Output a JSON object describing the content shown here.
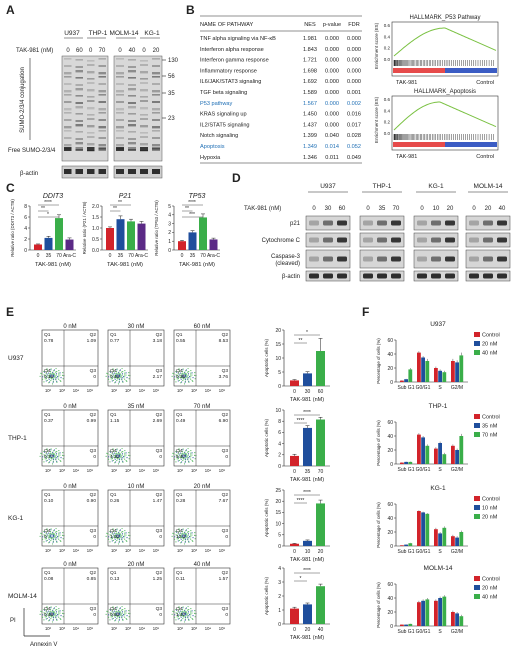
{
  "panel_letters": [
    "A",
    "B",
    "C",
    "D",
    "E",
    "F"
  ],
  "colors": {
    "control": "#d2232a",
    "mid": "#1f4e9c",
    "high": "#3aae49",
    "arac": "#5b2a86",
    "gsea_curve": "#7ac142",
    "highlight": "#1f6fb5"
  },
  "panel_a": {
    "cell_lines_left": [
      "U937",
      "THP-1"
    ],
    "cell_lines_right": [
      "MOLM-14",
      "KG-1"
    ],
    "dose_label": "TAK-981 (nM)",
    "doses_left": [
      "0",
      "60",
      "0",
      "70"
    ],
    "doses_right": [
      "0",
      "40",
      "0",
      "20"
    ],
    "conj_label": "SUMO-2/3/4 conjugation",
    "free_label": "Free SUMO-2/3/4",
    "actin_label": "β-actin",
    "mw_markers": [
      "130",
      "56",
      "35",
      "23"
    ]
  },
  "panel_b": {
    "headers": [
      "NAME OF PATHWAY",
      "NES",
      "p-value",
      "FDR"
    ],
    "rows": [
      [
        "TNF alpha signaling via NF-κB",
        "1.981",
        "0.000",
        "0.000"
      ],
      [
        "Interferon alpha response",
        "1.843",
        "0.000",
        "0.000"
      ],
      [
        "Interferon gamma response",
        "1.721",
        "0.000",
        "0.000"
      ],
      [
        "Inflammatory response",
        "1.698",
        "0.000",
        "0.000"
      ],
      [
        "IL6/JAK/STAT3 signaling",
        "1.692",
        "0.000",
        "0.000"
      ],
      [
        "TGF beta signaling",
        "1.589",
        "0.000",
        "0.001"
      ],
      [
        "P53 pathway",
        "1.567",
        "0.000",
        "0.002"
      ],
      [
        "KRAS signaling up",
        "1.450",
        "0.000",
        "0.016"
      ],
      [
        "IL2/STAT5 signaling",
        "1.437",
        "0.000",
        "0.017"
      ],
      [
        "Notch signaling",
        "1.399",
        "0.040",
        "0.028"
      ],
      [
        "Apoptosis",
        "1.349",
        "0.014",
        "0.052"
      ],
      [
        "Hypoxia",
        "1.346",
        "0.011",
        "0.049"
      ]
    ],
    "highlight_rows": [
      6,
      10
    ],
    "gsea": [
      {
        "title": "HALLMARK_P53 Pathway",
        "ylabel": "Enrichment score (ES)",
        "left": "TAK-981",
        "right": "Control",
        "y_ticks": [
          "0.6",
          "0.4",
          "0.2",
          "0.0"
        ]
      },
      {
        "title": "HALLMARK_Apoptosis",
        "ylabel": "Enrichment score (ES)",
        "left": "TAK-981",
        "right": "Control",
        "y_ticks": [
          "0.6",
          "0.4",
          "0.2",
          "0.0"
        ]
      }
    ]
  },
  "panel_c": {
    "charts": [
      {
        "gene": "DDIT3",
        "ylabel": "Relative ratio (DDIT3 / ACTB)",
        "ylim": [
          0,
          8
        ],
        "y_ticks": [
          "0",
          "2",
          "4",
          "6",
          "8"
        ],
        "values": [
          1.0,
          2.2,
          5.8,
          1.9
        ],
        "errors": [
          0.1,
          0.3,
          0.6,
          0.3
        ],
        "sig": [
          "****",
          "**",
          "*"
        ]
      },
      {
        "gene": "P21",
        "ylabel": "Relative ratio (P21 / ACTB)",
        "ylim": [
          0,
          2.0
        ],
        "y_ticks": [
          "0.0",
          "0.5",
          "1.0",
          "1.5",
          "2.0"
        ],
        "values": [
          1.0,
          1.4,
          1.3,
          1.2
        ],
        "errors": [
          0.05,
          0.15,
          0.1,
          0.1
        ],
        "sig": [
          "**",
          "**"
        ]
      },
      {
        "gene": "TP53",
        "ylabel": "Relative ratio (TP53 / ACTB)",
        "ylim": [
          0,
          5
        ],
        "y_ticks": [
          "0",
          "1",
          "2",
          "3",
          "4",
          "5"
        ],
        "values": [
          1.0,
          2.0,
          3.7,
          1.2
        ],
        "errors": [
          0.1,
          0.2,
          0.4,
          0.15
        ],
        "sig": [
          "****",
          "**",
          "***"
        ]
      }
    ],
    "categories": [
      "0",
      "35",
      "70",
      "Ara-C"
    ],
    "xlabel": "TAK-981 (nM)"
  },
  "panel_d": {
    "dose_label": "TAK-981 (nM)",
    "groups": [
      {
        "name": "U937",
        "doses": [
          "0",
          "30",
          "60"
        ]
      },
      {
        "name": "THP-1",
        "doses": [
          "0",
          "35",
          "70"
        ]
      },
      {
        "name": "KG-1",
        "doses": [
          "0",
          "10",
          "20"
        ]
      },
      {
        "name": "MOLM-14",
        "doses": [
          "0",
          "20",
          "40"
        ]
      }
    ],
    "rows": [
      "p21",
      "Cytochrome C",
      "Caspase-3 (cleaved)",
      "β-actin"
    ]
  },
  "panel_e": {
    "rows": [
      {
        "cell": "U937",
        "doses": [
          "0 nM",
          "30 nM",
          "60 nM"
        ],
        "q": [
          [
            "0.78",
            "1.09",
            "0.16",
            "0"
          ],
          [
            "0.77",
            "3.18",
            "0.49",
            "2.17"
          ],
          [
            "0.55",
            "8.53",
            "0.35",
            "3.76"
          ]
        ],
        "bar": {
          "cats": [
            "0",
            "30",
            "60"
          ],
          "values": [
            2,
            4.5,
            12.5
          ],
          "errors": [
            0.3,
            0.6,
            4.5
          ],
          "ylim": [
            0,
            20
          ],
          "y_ticks": [
            "0",
            "5",
            "10",
            "15",
            "20"
          ],
          "sig": [
            "*",
            "**"
          ]
        }
      },
      {
        "cell": "THP-1",
        "doses": [
          "0 nM",
          "35 nM",
          "70 nM"
        ],
        "q": [
          [
            "0.37",
            "0.99",
            "0.77",
            "0"
          ],
          [
            "1.15",
            "2.69",
            "4.32",
            "0"
          ],
          [
            "0.49",
            "6.90",
            "5.47",
            "0"
          ]
        ],
        "bar": {
          "cats": [
            "0",
            "35",
            "70"
          ],
          "values": [
            1.8,
            6.8,
            8.3
          ],
          "errors": [
            0.3,
            0.4,
            0.4
          ],
          "ylim": [
            0,
            10
          ],
          "y_ticks": [
            "0",
            "2",
            "4",
            "6",
            "8",
            "10"
          ],
          "sig": [
            "****",
            "****"
          ]
        }
      },
      {
        "cell": "KG-1",
        "doses": [
          "0 nM",
          "10 nM",
          "20 nM"
        ],
        "q": [
          [
            "0.10",
            "0.90",
            "0",
            "0"
          ],
          [
            "0.26",
            "1.47",
            "1.02",
            "0"
          ],
          [
            "0.28",
            "7.67",
            "12.3",
            "0"
          ]
        ],
        "bar": {
          "cats": [
            "0",
            "10",
            "20"
          ],
          "values": [
            1.0,
            2.3,
            19
          ],
          "errors": [
            0.2,
            0.4,
            1.5
          ],
          "ylim": [
            0,
            25
          ],
          "y_ticks": [
            "0",
            "5",
            "10",
            "15",
            "20",
            "25"
          ],
          "sig": [
            "****",
            "****"
          ]
        }
      },
      {
        "cell": "MOLM-14",
        "doses": [
          "0 nM",
          "20 nM",
          "40 nM"
        ],
        "q": [
          [
            "0.08",
            "0.85",
            "0.48",
            "0"
          ],
          [
            "0.13",
            "1.25",
            "0.63",
            "0"
          ],
          [
            "0.11",
            "1.57",
            "1.47",
            "0"
          ]
        ],
        "bar": {
          "cats": [
            "0",
            "20",
            "40"
          ],
          "values": [
            1.1,
            1.4,
            2.7
          ],
          "errors": [
            0.1,
            0.1,
            0.15
          ],
          "ylim": [
            0,
            4
          ],
          "y_ticks": [
            "0",
            "1",
            "2",
            "3",
            "4"
          ],
          "sig": [
            "****",
            "*"
          ]
        }
      }
    ],
    "quad_labels": [
      "Q1",
      "Q2",
      "Q4",
      "Q3"
    ],
    "axis_ticks": [
      "10²",
      "10³",
      "10⁴",
      "10⁵"
    ],
    "bar_ylabel": "Apoptotic cells (%)",
    "bar_xlabel": "TAK-981 (nM)",
    "pi_label": "PI",
    "annexin_label": "Annexin V"
  },
  "panel_f": {
    "charts": [
      {
        "cell": "U937",
        "legend": [
          "Control",
          "20 nM",
          "40 nM"
        ],
        "values": [
          [
            2,
            4,
            18
          ],
          [
            42,
            35,
            30
          ],
          [
            20,
            16,
            14
          ],
          [
            30,
            28,
            38
          ]
        ],
        "errors": [
          [
            0.5,
            0.5,
            2
          ],
          [
            2,
            2,
            3
          ],
          [
            2,
            2,
            2
          ],
          [
            3,
            3,
            4
          ]
        ]
      },
      {
        "cell": "THP-1",
        "legend": [
          "Control",
          "35 nM",
          "70 nM"
        ],
        "values": [
          [
            2,
            3,
            3
          ],
          [
            42,
            38,
            26
          ],
          [
            22,
            30,
            14
          ],
          [
            26,
            20,
            40
          ]
        ],
        "errors": [
          [
            0.5,
            0.5,
            0.5
          ],
          [
            2,
            2,
            2
          ],
          [
            2,
            2,
            2
          ],
          [
            2,
            2,
            3
          ]
        ]
      },
      {
        "cell": "KG-1",
        "legend": [
          "Control",
          "10 nM",
          "20 nM"
        ],
        "values": [
          [
            1,
            2,
            4
          ],
          [
            50,
            48,
            46
          ],
          [
            24,
            18,
            26
          ],
          [
            14,
            12,
            20
          ]
        ],
        "errors": [
          [
            0.3,
            0.3,
            0.5
          ],
          [
            1,
            1,
            1
          ],
          [
            2,
            2,
            2
          ],
          [
            2,
            2,
            2
          ]
        ]
      },
      {
        "cell": "MOLM-14",
        "legend": [
          "Control",
          "20 nM",
          "40 nM"
        ],
        "values": [
          [
            2,
            2,
            3
          ],
          [
            34,
            36,
            38
          ],
          [
            36,
            40,
            42
          ],
          [
            20,
            18,
            14
          ]
        ],
        "errors": [
          [
            0.3,
            0.3,
            0.3
          ],
          [
            2,
            2,
            2
          ],
          [
            2,
            2,
            2
          ],
          [
            2,
            2,
            2
          ]
        ]
      }
    ],
    "categories": [
      "Sub G1",
      "G0/G1",
      "S",
      "G2/M"
    ],
    "ylabel": "Percentage of cells (%)",
    "ylim": [
      0,
      60
    ],
    "y_ticks": [
      "0",
      "20",
      "40",
      "60"
    ]
  }
}
